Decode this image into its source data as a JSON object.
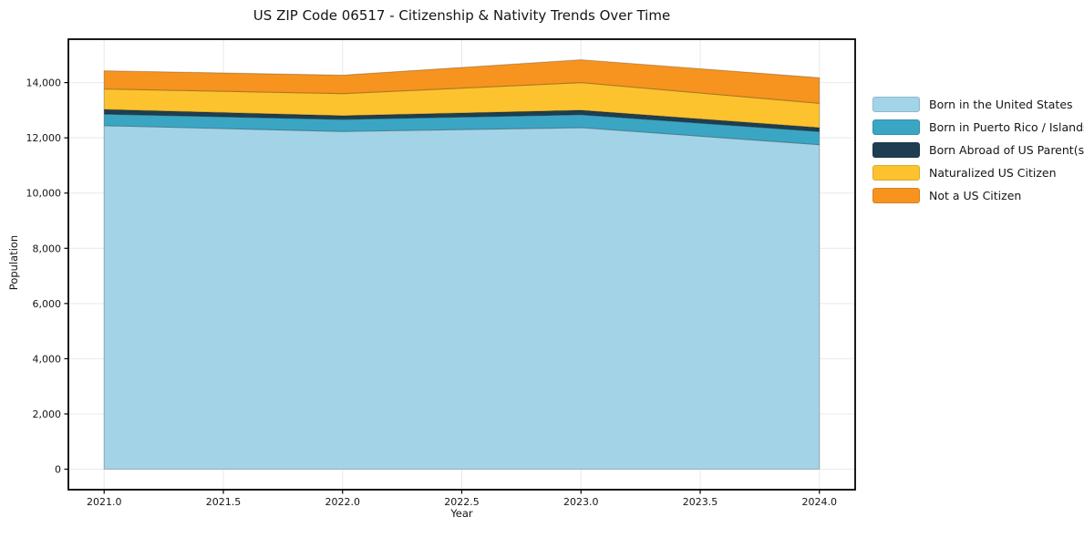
{
  "figure": {
    "background": "#ffffff",
    "frame_color": "#000000",
    "grid_color": "#e9e9e9",
    "tick_color": "#000000",
    "text_color": "#151515"
  },
  "chart_data": {
    "type": "area",
    "stacked": true,
    "title": "US ZIP Code 06517 - Citizenship & Nativity Trends Over Time",
    "xlabel": "Year",
    "ylabel": "Population",
    "x": [
      2021,
      2022,
      2023,
      2024
    ],
    "series": [
      {
        "name": "Born in the United States",
        "color": "#a3d3e7",
        "values": [
          12440,
          12230,
          12370,
          11750
        ]
      },
      {
        "name": "Born in Puerto Rico / Islands",
        "color": "#3ba6c3",
        "values": [
          420,
          440,
          470,
          480
        ]
      },
      {
        "name": "Born Abroad of US Parent(s)",
        "color": "#1e3f51",
        "values": [
          170,
          130,
          160,
          140
        ]
      },
      {
        "name": "Naturalized US Citizen",
        "color": "#fcc32f",
        "values": [
          740,
          800,
          1000,
          880
        ]
      },
      {
        "name": "Not a US Citizen",
        "color": "#f6941f",
        "values": [
          660,
          670,
          830,
          930
        ]
      }
    ],
    "xlim": [
      2020.85,
      2024.15
    ],
    "ylim": [
      -742,
      15572
    ],
    "xticks": {
      "values": [
        2021.0,
        2021.5,
        2022.0,
        2022.5,
        2023.0,
        2023.5,
        2024.0
      ],
      "labels": [
        "2021.0",
        "2021.5",
        "2022.0",
        "2022.5",
        "2023.0",
        "2023.5",
        "2024.0"
      ]
    },
    "yticks": {
      "values": [
        0,
        2000,
        4000,
        6000,
        8000,
        10000,
        12000,
        14000
      ],
      "labels": [
        "0",
        "2,000",
        "4,000",
        "6,000",
        "8,000",
        "10,000",
        "12,000",
        "14,000"
      ]
    },
    "grid": true,
    "legend_position": "right-outside"
  }
}
